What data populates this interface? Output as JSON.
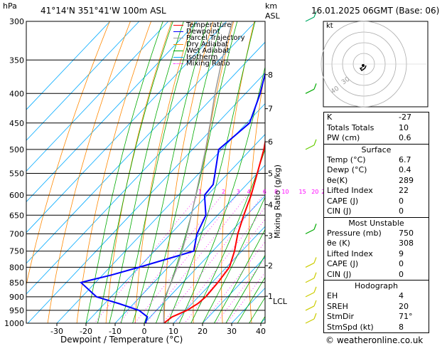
{
  "header": {
    "hpa_label": "hPa",
    "location": "41°14'N  351°41'W  100m  ASL",
    "km_label": "km",
    "asl_label": "ASL",
    "datetime": "16.01.2025  06GMT  (Base: 06)"
  },
  "chart_data": {
    "type": "line",
    "title": "",
    "xlabel": "Dewpoint / Temperature (°C)",
    "ylabel": "hPa",
    "right_ylabel": "Mixing Ratio (g/kg)",
    "x_ticks": [
      -30,
      -20,
      -10,
      0,
      10,
      20,
      30,
      40
    ],
    "pressure_levels": [
      300,
      350,
      400,
      450,
      500,
      550,
      600,
      650,
      700,
      750,
      800,
      850,
      900,
      950,
      1000
    ],
    "km_ticks": [
      {
        "label": "1",
        "p": 898
      },
      {
        "label": "2",
        "p": 795
      },
      {
        "label": "3",
        "p": 705
      },
      {
        "label": "4",
        "p": 623
      },
      {
        "label": "5",
        "p": 550
      },
      {
        "label": "6",
        "p": 485
      },
      {
        "label": "7",
        "p": 425
      },
      {
        "label": "8",
        "p": 371
      }
    ],
    "lcl_label": "LCL",
    "lcl_p": 905,
    "mixing_ratio_labels": [
      "1",
      "2",
      "3",
      "4",
      "6",
      "8",
      "10",
      "15",
      "20",
      "25"
    ],
    "legend": [
      {
        "name": "Temperature",
        "color": "#ff0000",
        "style": "solid"
      },
      {
        "name": "Dewpoint",
        "color": "#0000ff",
        "style": "solid"
      },
      {
        "name": "Parcel Trajectory",
        "color": "#999999",
        "style": "solid"
      },
      {
        "name": "Dry Adiabat",
        "color": "#ff8800",
        "style": "solid"
      },
      {
        "name": "Wet Adiabat",
        "color": "#00aa00",
        "style": "solid"
      },
      {
        "name": "Isotherm",
        "color": "#00aaff",
        "style": "solid"
      },
      {
        "name": "Mixing Ratio",
        "color": "#ff00ff",
        "style": "dotted"
      }
    ],
    "series": [
      {
        "name": "Temperature",
        "color": "#ff0000",
        "points": [
          [
            1000,
            6.7
          ],
          [
            975,
            7.5
          ],
          [
            950,
            10.5
          ],
          [
            925,
            12.0
          ],
          [
            900,
            12.5
          ],
          [
            850,
            12.0
          ],
          [
            800,
            11.0
          ],
          [
            750,
            7.5
          ],
          [
            700,
            3.0
          ],
          [
            650,
            -1.0
          ],
          [
            600,
            -5.0
          ],
          [
            550,
            -10.0
          ],
          [
            500,
            -15.5
          ],
          [
            450,
            -22.5
          ],
          [
            400,
            -29.0
          ],
          [
            350,
            -36.5
          ],
          [
            300,
            -45.0
          ]
        ]
      },
      {
        "name": "Dewpoint",
        "color": "#0000ff",
        "points": [
          [
            1000,
            0.4
          ],
          [
            975,
            -1.0
          ],
          [
            950,
            -6.0
          ],
          [
            925,
            -15.0
          ],
          [
            900,
            -25.0
          ],
          [
            850,
            -35.0
          ],
          [
            825,
            -27.0
          ],
          [
            800,
            -20.0
          ],
          [
            750,
            -6.5
          ],
          [
            700,
            -11.0
          ],
          [
            650,
            -14.0
          ],
          [
            600,
            -21.0
          ],
          [
            575,
            -21.5
          ],
          [
            550,
            -24.5
          ],
          [
            500,
            -31.0
          ],
          [
            450,
            -29.0
          ],
          [
            400,
            -35.0
          ],
          [
            350,
            -43.0
          ],
          [
            300,
            -53.0
          ]
        ]
      },
      {
        "name": "Parcel Trajectory",
        "color": "#999999",
        "points": [
          [
            1000,
            6.7
          ],
          [
            950,
            2.5
          ],
          [
            905,
            -1.3
          ],
          [
            850,
            -4.0
          ],
          [
            800,
            -7.0
          ],
          [
            750,
            -10.5
          ],
          [
            700,
            -14.5
          ],
          [
            650,
            -19.0
          ],
          [
            600,
            -24.0
          ],
          [
            550,
            -29.5
          ],
          [
            500,
            -35.5
          ],
          [
            450,
            -42.5
          ],
          [
            400,
            -50.5
          ],
          [
            350,
            -59.0
          ],
          [
            300,
            -68.0
          ]
        ]
      }
    ],
    "wind_barbs": [
      {
        "p": 300,
        "color": "#00aa66"
      },
      {
        "p": 400,
        "color": "#00aa00"
      },
      {
        "p": 500,
        "color": "#66cc00"
      },
      {
        "p": 700,
        "color": "#00aa00"
      },
      {
        "p": 800,
        "color": "#cccc00"
      },
      {
        "p": 850,
        "color": "#cccc00"
      },
      {
        "p": 900,
        "color": "#cccc00"
      },
      {
        "p": 950,
        "color": "#cccc00"
      },
      {
        "p": 1000,
        "color": "#cccc00"
      }
    ]
  },
  "hodograph": {
    "unit_label": "kt",
    "ring_labels": [
      "40",
      "30"
    ]
  },
  "indices": [
    {
      "label": "K",
      "value": "-27"
    },
    {
      "label": "Totals Totals",
      "value": "10"
    },
    {
      "label": "PW (cm)",
      "value": "0.6"
    }
  ],
  "surface": {
    "title": "Surface",
    "rows": [
      {
        "label": "Temp (°C)",
        "value": "6.7"
      },
      {
        "label": "Dewp (°C)",
        "value": "0.4"
      },
      {
        "label": "θe(K)",
        "value": "289"
      },
      {
        "label": "Lifted Index",
        "value": "22"
      },
      {
        "label": "CAPE (J)",
        "value": "0"
      },
      {
        "label": "CIN (J)",
        "value": "0"
      }
    ]
  },
  "most_unstable": {
    "title": "Most Unstable",
    "rows": [
      {
        "label": "Pressure (mb)",
        "value": "750"
      },
      {
        "label": "θe (K)",
        "value": "308"
      },
      {
        "label": "Lifted Index",
        "value": "9"
      },
      {
        "label": "CAPE (J)",
        "value": "0"
      },
      {
        "label": "CIN (J)",
        "value": "0"
      }
    ]
  },
  "hodograph_table": {
    "title": "Hodograph",
    "rows": [
      {
        "label": "EH",
        "value": "4"
      },
      {
        "label": "SREH",
        "value": "20"
      },
      {
        "label": "StmDir",
        "value": "71°"
      },
      {
        "label": "StmSpd (kt)",
        "value": "8"
      }
    ]
  },
  "footer": "© weatheronline.co.uk"
}
